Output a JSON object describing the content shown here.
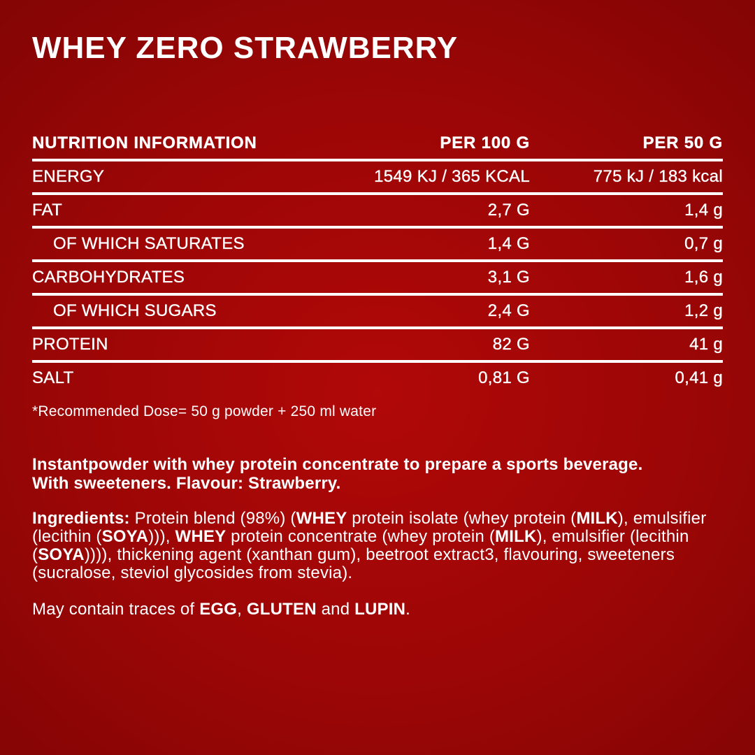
{
  "title": "WHEY ZERO STRAWBERRY",
  "colors": {
    "bg_center": "#b10808",
    "bg_edge": "#780404",
    "text": "#ffffff"
  },
  "nutrition_table": {
    "header": {
      "title": "NUTRITION INFORMATION",
      "per_100": "PER 100 G",
      "per_50": "PER 50 G"
    },
    "rows": [
      {
        "label": "ENERGY",
        "per100": "1549 KJ / 365 KCAL",
        "per50": "775 kJ / 183 kcal"
      },
      {
        "label": "FAT",
        "per100": "2,7 G",
        "per50": "1,4 g"
      },
      {
        "label": "OF WHICH SATURATES",
        "per100": "1,4 G",
        "per50": "0,7 g"
      },
      {
        "label": "CARBOHYDRATES",
        "per100": "3,1 G",
        "per50": "1,6 g"
      },
      {
        "label": "OF WHICH SUGARS",
        "per100": "2,4 G",
        "per50": "1,2 g"
      },
      {
        "label": "PROTEIN",
        "per100": "82 G",
        "per50": "41 g"
      },
      {
        "label": "SALT",
        "per100": "0,81 G",
        "per50": "0,41 g"
      }
    ],
    "footnote": "*Recommended Dose= 50 g powder + 250 ml water"
  },
  "description": {
    "line1": "Instantpowder with whey protein concentrate to prepare a sports beverage.",
    "line2": "With sweeteners. Flavour: Strawberry."
  },
  "ingredients": {
    "segments": [
      {
        "text": "Ingredients:",
        "bold": true
      },
      {
        "text": " Protein blend (98%) (",
        "bold": false
      },
      {
        "text": "WHEY",
        "bold": true
      },
      {
        "text": " protein isolate (whey protein (",
        "bold": false
      },
      {
        "text": "MILK",
        "bold": true
      },
      {
        "text": "), emulsifier (lecithin (",
        "bold": false
      },
      {
        "text": "SOYA",
        "bold": true
      },
      {
        "text": "))), ",
        "bold": false
      },
      {
        "text": "WHEY",
        "bold": true
      },
      {
        "text": " protein concentrate (whey protein (",
        "bold": false
      },
      {
        "text": "MILK",
        "bold": true
      },
      {
        "text": "), emulsifier (lecithin (",
        "bold": false
      },
      {
        "text": "SOYA",
        "bold": true
      },
      {
        "text": ")))), thickening agent (xanthan gum), beetroot extract3, flavouring, sweeteners (sucralose, steviol glycosides from stevia).",
        "bold": false
      }
    ]
  },
  "traces": {
    "segments": [
      {
        "text": "May contain traces of ",
        "bold": false
      },
      {
        "text": "EGG",
        "bold": true
      },
      {
        "text": ", ",
        "bold": false
      },
      {
        "text": "GLUTEN",
        "bold": true
      },
      {
        "text": " and ",
        "bold": false
      },
      {
        "text": "LUPIN",
        "bold": true
      },
      {
        "text": ".",
        "bold": false
      }
    ]
  }
}
